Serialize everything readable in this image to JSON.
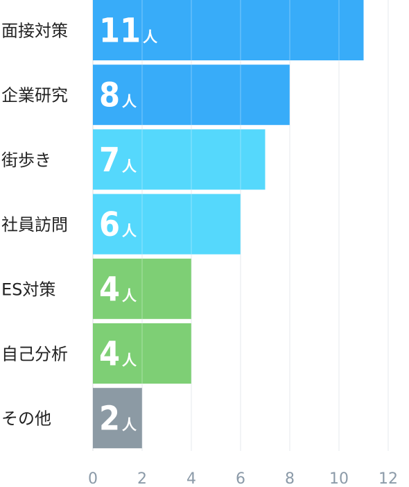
{
  "chart_data": {
    "type": "bar",
    "orientation": "horizontal",
    "categories": [
      "面接対策",
      "企業研究",
      "街歩き",
      "社員訪問",
      "ES対策",
      "自己分析",
      "その他"
    ],
    "values": [
      11,
      8,
      7,
      6,
      4,
      4,
      2
    ],
    "value_unit": "人",
    "xlim": [
      0,
      12
    ],
    "x_ticks": [
      0,
      2,
      4,
      6,
      8,
      10,
      12
    ],
    "grid": true,
    "bar_colors": [
      "#38acf9",
      "#38acf9",
      "#55d8fc",
      "#55d8fc",
      "#7ecf75",
      "#7ecf75",
      "#8c9aa4"
    ]
  }
}
